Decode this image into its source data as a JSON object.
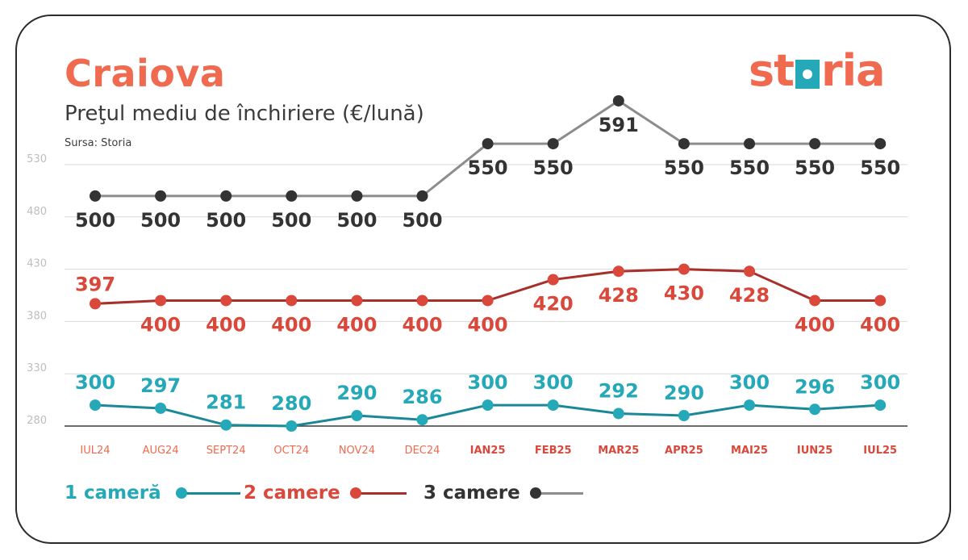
{
  "header": {
    "title": "Craiova",
    "subtitle": "Preţul mediu de închiriere (€/lună)",
    "source": "Sursa: Storia",
    "logo_text_a": "st",
    "logo_text_b": "ria"
  },
  "chart_data": {
    "type": "line",
    "categories": [
      "IUL24",
      "AUG24",
      "SEPT24",
      "OCT24",
      "NOV24",
      "DEC24",
      "IAN25",
      "FEB25",
      "MAR25",
      "APR25",
      "MAI25",
      "IUN25",
      "IUL25"
    ],
    "category_colors": [
      "#ef6a4f",
      "#ef6a4f",
      "#ef6a4f",
      "#ef6a4f",
      "#ef6a4f",
      "#ef6a4f",
      "#d9483a",
      "#d9483a",
      "#d9483a",
      "#d9483a",
      "#d9483a",
      "#d9483a",
      "#d9483a"
    ],
    "category_bold": [
      false,
      false,
      false,
      false,
      false,
      false,
      true,
      true,
      true,
      true,
      true,
      true,
      true
    ],
    "y_ticks": [
      280,
      330,
      380,
      430,
      480,
      530
    ],
    "ylim": [
      280,
      530
    ],
    "grid": true,
    "legend_position": "bottom-left",
    "series": [
      {
        "name": "1 cameră",
        "color": "#25a8b8",
        "line_color": "#1a8896",
        "label_color": "#25a8b8",
        "values": [
          300,
          297,
          281,
          280,
          290,
          286,
          300,
          300,
          292,
          290,
          300,
          296,
          300
        ],
        "label_pos": "above"
      },
      {
        "name": "2 camere",
        "color": "#d9483a",
        "line_color": "#a8302a",
        "label_color": "#d9483a",
        "values": [
          397,
          400,
          400,
          400,
          400,
          400,
          400,
          420,
          428,
          430,
          428,
          400,
          400
        ],
        "label_pos": "below"
      },
      {
        "name": "3 camere",
        "color": "#333333",
        "line_color": "#8c8c8c",
        "label_color": "#333333",
        "values": [
          500,
          500,
          500,
          500,
          500,
          500,
          550,
          550,
          591,
          550,
          550,
          550,
          550
        ],
        "label_pos": "below"
      }
    ]
  }
}
